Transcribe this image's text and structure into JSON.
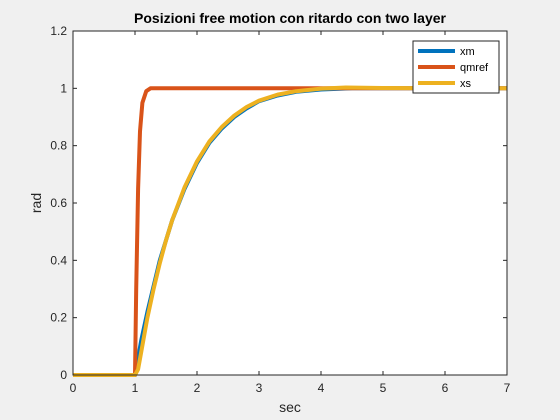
{
  "chart_data": {
    "type": "line",
    "title": "Posizioni free motion con ritardo con two layer",
    "xlabel": "sec",
    "ylabel": "rad",
    "xlim": [
      0,
      7
    ],
    "ylim": [
      0,
      1.2
    ],
    "xticks": [
      0,
      1,
      2,
      3,
      4,
      5,
      6,
      7
    ],
    "yticks": [
      0,
      0.2,
      0.4,
      0.6,
      0.8,
      1,
      1.2
    ],
    "xtick_labels": [
      "0",
      "1",
      "2",
      "3",
      "4",
      "5",
      "6",
      "7"
    ],
    "ytick_labels": [
      "0",
      "0.2",
      "0.4",
      "0.6",
      "0.8",
      "1",
      "1.2"
    ],
    "legend_position": "top-right",
    "series": [
      {
        "name": "xm",
        "color": "#0072BD",
        "x": [
          0,
          1.0,
          1.1,
          1.2,
          1.3,
          1.4,
          1.5,
          1.6,
          1.8,
          2.0,
          2.2,
          2.4,
          2.6,
          2.8,
          3.0,
          3.3,
          3.6,
          4.0,
          4.5,
          5.0,
          6.0,
          7.0
        ],
        "y": [
          0,
          0,
          0.12,
          0.22,
          0.31,
          0.4,
          0.47,
          0.54,
          0.65,
          0.74,
          0.81,
          0.86,
          0.9,
          0.93,
          0.955,
          0.975,
          0.988,
          0.996,
          1.0,
          1.0,
          1.0,
          1.0
        ]
      },
      {
        "name": "qmref",
        "color": "#D95319",
        "x": [
          0,
          1.0,
          1.02,
          1.05,
          1.08,
          1.12,
          1.18,
          1.25,
          1.35,
          1.5,
          2.0,
          3.0,
          4.0,
          5.0,
          6.0,
          7.0
        ],
        "y": [
          0,
          0,
          0.3,
          0.65,
          0.85,
          0.95,
          0.99,
          1.0,
          1.0,
          1.0,
          1.0,
          1.0,
          1.0,
          1.0,
          1.0,
          1.0
        ]
      },
      {
        "name": "xs",
        "color": "#EDB120",
        "x": [
          0,
          1.0,
          1.05,
          1.1,
          1.2,
          1.3,
          1.4,
          1.5,
          1.6,
          1.8,
          2.0,
          2.2,
          2.4,
          2.6,
          2.8,
          3.0,
          3.3,
          3.6,
          4.0,
          4.4,
          5.0,
          6.0,
          7.0
        ],
        "y": [
          0,
          0,
          0.02,
          0.08,
          0.2,
          0.3,
          0.39,
          0.47,
          0.54,
          0.655,
          0.745,
          0.815,
          0.865,
          0.905,
          0.935,
          0.957,
          0.978,
          0.99,
          0.999,
          1.003,
          1.001,
          1.0,
          1.0
        ]
      }
    ]
  }
}
